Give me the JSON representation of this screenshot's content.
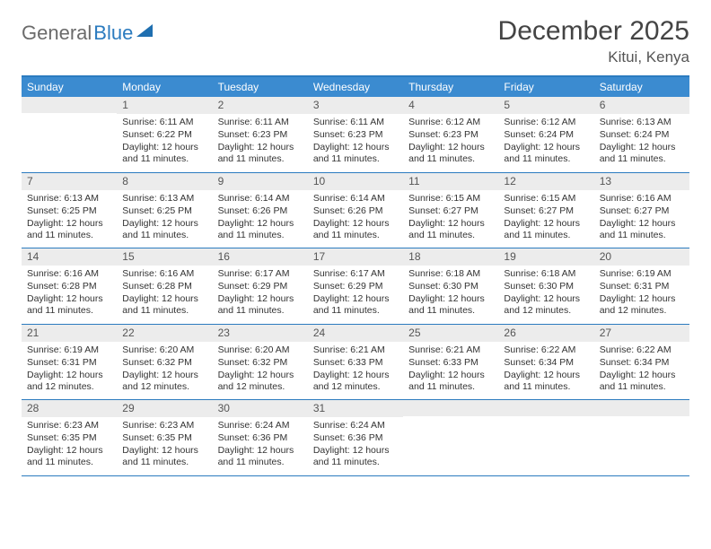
{
  "brand": {
    "part1": "General",
    "part2": "Blue"
  },
  "title": "December 2025",
  "location": "Kitui, Kenya",
  "colors": {
    "header_bar": "#3b8bd0",
    "accent_border": "#2b7bbf",
    "daynum_bg": "#ececec",
    "text": "#333333",
    "title_text": "#444444"
  },
  "weekdays": [
    "Sunday",
    "Monday",
    "Tuesday",
    "Wednesday",
    "Thursday",
    "Friday",
    "Saturday"
  ],
  "weeks": [
    [
      {
        "n": "",
        "sr": "",
        "ss": "",
        "dl": ""
      },
      {
        "n": "1",
        "sr": "Sunrise: 6:11 AM",
        "ss": "Sunset: 6:22 PM",
        "dl": "Daylight: 12 hours and 11 minutes."
      },
      {
        "n": "2",
        "sr": "Sunrise: 6:11 AM",
        "ss": "Sunset: 6:23 PM",
        "dl": "Daylight: 12 hours and 11 minutes."
      },
      {
        "n": "3",
        "sr": "Sunrise: 6:11 AM",
        "ss": "Sunset: 6:23 PM",
        "dl": "Daylight: 12 hours and 11 minutes."
      },
      {
        "n": "4",
        "sr": "Sunrise: 6:12 AM",
        "ss": "Sunset: 6:23 PM",
        "dl": "Daylight: 12 hours and 11 minutes."
      },
      {
        "n": "5",
        "sr": "Sunrise: 6:12 AM",
        "ss": "Sunset: 6:24 PM",
        "dl": "Daylight: 12 hours and 11 minutes."
      },
      {
        "n": "6",
        "sr": "Sunrise: 6:13 AM",
        "ss": "Sunset: 6:24 PM",
        "dl": "Daylight: 12 hours and 11 minutes."
      }
    ],
    [
      {
        "n": "7",
        "sr": "Sunrise: 6:13 AM",
        "ss": "Sunset: 6:25 PM",
        "dl": "Daylight: 12 hours and 11 minutes."
      },
      {
        "n": "8",
        "sr": "Sunrise: 6:13 AM",
        "ss": "Sunset: 6:25 PM",
        "dl": "Daylight: 12 hours and 11 minutes."
      },
      {
        "n": "9",
        "sr": "Sunrise: 6:14 AM",
        "ss": "Sunset: 6:26 PM",
        "dl": "Daylight: 12 hours and 11 minutes."
      },
      {
        "n": "10",
        "sr": "Sunrise: 6:14 AM",
        "ss": "Sunset: 6:26 PM",
        "dl": "Daylight: 12 hours and 11 minutes."
      },
      {
        "n": "11",
        "sr": "Sunrise: 6:15 AM",
        "ss": "Sunset: 6:27 PM",
        "dl": "Daylight: 12 hours and 11 minutes."
      },
      {
        "n": "12",
        "sr": "Sunrise: 6:15 AM",
        "ss": "Sunset: 6:27 PM",
        "dl": "Daylight: 12 hours and 11 minutes."
      },
      {
        "n": "13",
        "sr": "Sunrise: 6:16 AM",
        "ss": "Sunset: 6:27 PM",
        "dl": "Daylight: 12 hours and 11 minutes."
      }
    ],
    [
      {
        "n": "14",
        "sr": "Sunrise: 6:16 AM",
        "ss": "Sunset: 6:28 PM",
        "dl": "Daylight: 12 hours and 11 minutes."
      },
      {
        "n": "15",
        "sr": "Sunrise: 6:16 AM",
        "ss": "Sunset: 6:28 PM",
        "dl": "Daylight: 12 hours and 11 minutes."
      },
      {
        "n": "16",
        "sr": "Sunrise: 6:17 AM",
        "ss": "Sunset: 6:29 PM",
        "dl": "Daylight: 12 hours and 11 minutes."
      },
      {
        "n": "17",
        "sr": "Sunrise: 6:17 AM",
        "ss": "Sunset: 6:29 PM",
        "dl": "Daylight: 12 hours and 11 minutes."
      },
      {
        "n": "18",
        "sr": "Sunrise: 6:18 AM",
        "ss": "Sunset: 6:30 PM",
        "dl": "Daylight: 12 hours and 11 minutes."
      },
      {
        "n": "19",
        "sr": "Sunrise: 6:18 AM",
        "ss": "Sunset: 6:30 PM",
        "dl": "Daylight: 12 hours and 12 minutes."
      },
      {
        "n": "20",
        "sr": "Sunrise: 6:19 AM",
        "ss": "Sunset: 6:31 PM",
        "dl": "Daylight: 12 hours and 12 minutes."
      }
    ],
    [
      {
        "n": "21",
        "sr": "Sunrise: 6:19 AM",
        "ss": "Sunset: 6:31 PM",
        "dl": "Daylight: 12 hours and 12 minutes."
      },
      {
        "n": "22",
        "sr": "Sunrise: 6:20 AM",
        "ss": "Sunset: 6:32 PM",
        "dl": "Daylight: 12 hours and 12 minutes."
      },
      {
        "n": "23",
        "sr": "Sunrise: 6:20 AM",
        "ss": "Sunset: 6:32 PM",
        "dl": "Daylight: 12 hours and 12 minutes."
      },
      {
        "n": "24",
        "sr": "Sunrise: 6:21 AM",
        "ss": "Sunset: 6:33 PM",
        "dl": "Daylight: 12 hours and 12 minutes."
      },
      {
        "n": "25",
        "sr": "Sunrise: 6:21 AM",
        "ss": "Sunset: 6:33 PM",
        "dl": "Daylight: 12 hours and 11 minutes."
      },
      {
        "n": "26",
        "sr": "Sunrise: 6:22 AM",
        "ss": "Sunset: 6:34 PM",
        "dl": "Daylight: 12 hours and 11 minutes."
      },
      {
        "n": "27",
        "sr": "Sunrise: 6:22 AM",
        "ss": "Sunset: 6:34 PM",
        "dl": "Daylight: 12 hours and 11 minutes."
      }
    ],
    [
      {
        "n": "28",
        "sr": "Sunrise: 6:23 AM",
        "ss": "Sunset: 6:35 PM",
        "dl": "Daylight: 12 hours and 11 minutes."
      },
      {
        "n": "29",
        "sr": "Sunrise: 6:23 AM",
        "ss": "Sunset: 6:35 PM",
        "dl": "Daylight: 12 hours and 11 minutes."
      },
      {
        "n": "30",
        "sr": "Sunrise: 6:24 AM",
        "ss": "Sunset: 6:36 PM",
        "dl": "Daylight: 12 hours and 11 minutes."
      },
      {
        "n": "31",
        "sr": "Sunrise: 6:24 AM",
        "ss": "Sunset: 6:36 PM",
        "dl": "Daylight: 12 hours and 11 minutes."
      },
      {
        "n": "",
        "sr": "",
        "ss": "",
        "dl": ""
      },
      {
        "n": "",
        "sr": "",
        "ss": "",
        "dl": ""
      },
      {
        "n": "",
        "sr": "",
        "ss": "",
        "dl": ""
      }
    ]
  ]
}
